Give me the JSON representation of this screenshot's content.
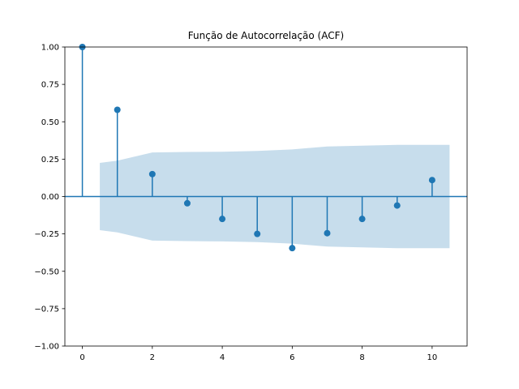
{
  "chart_data": {
    "type": "stem",
    "title": "Função de Autocorrelação (ACF)",
    "xlabel": "",
    "ylabel": "",
    "xlim": [
      -0.5,
      11.0
    ],
    "ylim": [
      -1.0,
      1.0
    ],
    "x_ticks": [
      "0",
      "2",
      "4",
      "6",
      "8",
      "10"
    ],
    "y_ticks": [
      "−1.00",
      "−0.75",
      "−0.50",
      "−0.25",
      "0.00",
      "0.25",
      "0.50",
      "0.75",
      "1.00"
    ],
    "lags": [
      0,
      1,
      2,
      3,
      4,
      5,
      6,
      7,
      8,
      9,
      10
    ],
    "values": [
      1.0,
      0.58,
      0.15,
      -0.045,
      -0.15,
      -0.25,
      -0.345,
      -0.245,
      -0.15,
      -0.06,
      0.11
    ],
    "confidence_band": {
      "x": [
        0.5,
        1.0,
        2.0,
        3.0,
        4.0,
        5.0,
        6.0,
        7.0,
        8.0,
        9.0,
        10.5
      ],
      "upper": [
        0.225,
        0.24,
        0.295,
        0.298,
        0.3,
        0.305,
        0.315,
        0.335,
        0.34,
        0.345,
        0.345
      ]
    },
    "grid": false,
    "colors": {
      "stem": "#1f77b4",
      "band": "#1f77b4",
      "axes": "#000000"
    }
  }
}
